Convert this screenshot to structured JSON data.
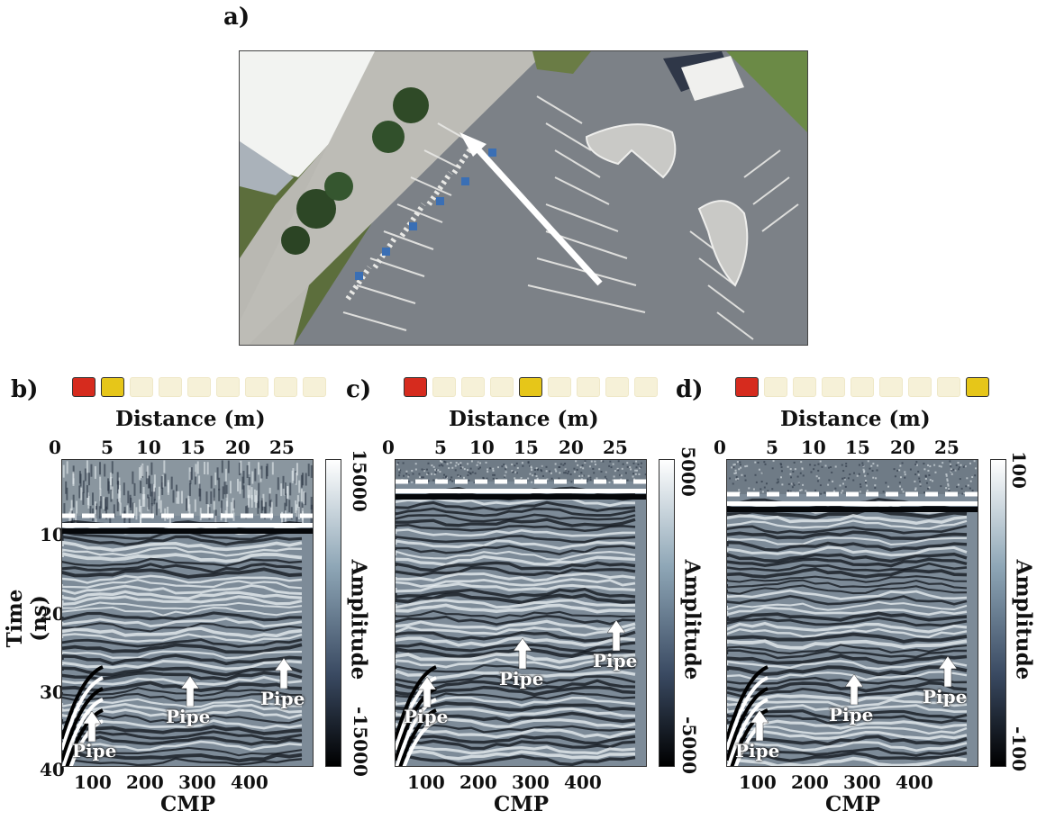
{
  "panels": {
    "a": {
      "letter": "a)"
    },
    "b": {
      "letter": "b)",
      "colorbar": {
        "max": "15000",
        "min": "-15000",
        "label": "Amplitude"
      }
    },
    "c": {
      "letter": "c)",
      "colorbar": {
        "max": "5000",
        "min": "-5000",
        "label": "Amplitude"
      }
    },
    "d": {
      "letter": "d)",
      "colorbar": {
        "max": "100",
        "min": "-100",
        "label": "Amplitude"
      }
    }
  },
  "axes": {
    "distance_label": "Distance (m)",
    "distance_ticks": [
      "0",
      "5",
      "10",
      "15",
      "20",
      "25"
    ],
    "cmp_label": "CMP",
    "cmp_ticks": [
      "100",
      "200",
      "300",
      "400"
    ],
    "time_label": "Time (ns)",
    "time_ticks": [
      "10",
      "20",
      "30",
      "40"
    ]
  },
  "annotations": {
    "pipe": "Pipe"
  },
  "antenna_array": {
    "count": 9,
    "transmitter_color": "#d62b1e",
    "receiver_color": "#e6c619",
    "inactive_color": "#f6f1d8",
    "receiver_position": {
      "b": 2,
      "c": 5,
      "d": 9
    }
  },
  "colors": {
    "colormap": [
      "#000000",
      "#3a4a62",
      "#8ea6b6",
      "#ffffff"
    ]
  }
}
